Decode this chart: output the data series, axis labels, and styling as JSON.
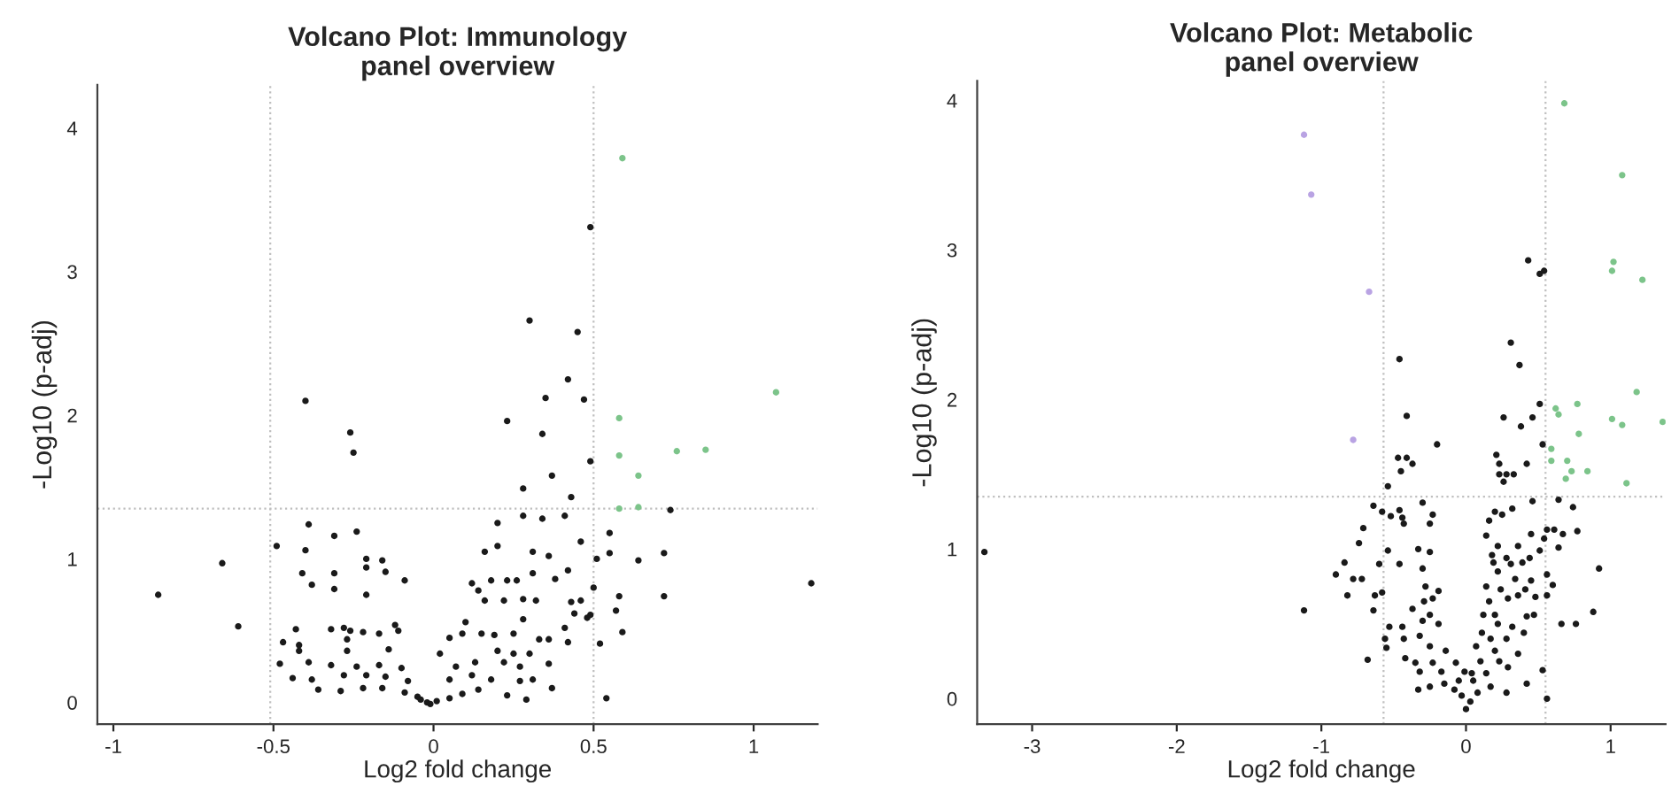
{
  "chart_data": [
    {
      "type": "scatter",
      "title": "Volcano Plot: Immunology\npanel overview",
      "xlabel": "Log2 fold change",
      "ylabel": "-Log10 (p-adj)",
      "xlim": [
        -1.05,
        1.2
      ],
      "ylim": [
        -0.15,
        4.3
      ],
      "xticks": [
        -1,
        -0.5,
        0,
        0.5,
        1
      ],
      "yticks": [
        0,
        1,
        2,
        3,
        4
      ],
      "marker": "circle",
      "grid": false,
      "legend": false,
      "ref_lines": [
        {
          "axis": "x",
          "value": -0.51,
          "color": "#bfbfbf",
          "line_style": "dotted"
        },
        {
          "axis": "x",
          "value": 0.5,
          "color": "#bfbfbf",
          "line_style": "dotted"
        },
        {
          "axis": "y",
          "value": 1.35,
          "color": "#bfbfbf",
          "line_style": "dotted"
        }
      ],
      "series": [
        {
          "color": "#1a1a1a",
          "x": [
            0.49,
            0.3,
            0.45,
            0.42,
            0.35,
            0.47,
            -0.4,
            0.23,
            -0.26,
            0.34,
            -0.25,
            0.49,
            0.37,
            0.28,
            0.43,
            0.74,
            -0.39,
            0.2,
            0.28,
            0.34,
            0.41,
            -0.31,
            -0.24,
            0.55,
            -0.49,
            -0.4,
            0.2,
            0.46,
            0.55,
            0.72,
            -0.66,
            -0.21,
            -0.16,
            0.16,
            0.31,
            0.36,
            0.51,
            0.64,
            -0.41,
            -0.31,
            -0.21,
            -0.15,
            0.42,
            0.31,
            1.18,
            -0.86,
            -0.38,
            -0.31,
            -0.09,
            0.12,
            0.18,
            0.23,
            0.26,
            0.38,
            0.5,
            -0.21,
            0.14,
            0.28,
            0.32,
            0.58,
            0.72,
            0.16,
            0.22,
            0.43,
            0.46,
            0.44,
            0.48,
            0.49,
            0.57,
            0.28,
            0.1,
            -0.61,
            -0.43,
            -0.32,
            -0.28,
            -0.26,
            -0.12,
            -0.11,
            0.59,
            0.41,
            -0.47,
            -0.42,
            -0.27,
            -0.22,
            -0.17,
            0.05,
            0.09,
            0.15,
            0.19,
            0.25,
            0.33,
            0.36,
            0.52,
            0.42,
            -0.42,
            -0.27,
            -0.14,
            0.02,
            0.2,
            0.25,
            0.3,
            -0.48,
            -0.39,
            -0.32,
            -0.24,
            -0.17,
            -0.1,
            0.07,
            0.13,
            0.22,
            0.27,
            0.36,
            -0.44,
            -0.38,
            -0.28,
            -0.21,
            -0.15,
            -0.08,
            0.05,
            0.12,
            0.18,
            0.27,
            0.31,
            -0.36,
            -0.29,
            -0.22,
            -0.16,
            -0.09,
            -0.05,
            -0.02,
            0.01,
            0.05,
            0.09,
            0.14,
            0.23,
            0.29,
            0.37,
            0.54,
            -0.04,
            -0.01
          ],
          "values": [
            3.31,
            2.66,
            2.58,
            2.25,
            2.12,
            2.11,
            2.1,
            1.96,
            1.88,
            1.87,
            1.74,
            1.68,
            1.58,
            1.49,
            1.43,
            1.34,
            1.24,
            1.25,
            1.3,
            1.28,
            1.3,
            1.16,
            1.19,
            1.18,
            1.09,
            1.06,
            1.09,
            1.12,
            1.04,
            1.04,
            0.97,
            1.0,
            0.99,
            1.05,
            1.05,
            1.02,
            1.0,
            0.99,
            0.9,
            0.9,
            0.94,
            0.91,
            0.92,
            0.9,
            0.83,
            0.75,
            0.82,
            0.79,
            0.85,
            0.83,
            0.85,
            0.85,
            0.85,
            0.86,
            0.8,
            0.75,
            0.78,
            0.72,
            0.71,
            0.74,
            0.74,
            0.71,
            0.71,
            0.7,
            0.71,
            0.62,
            0.59,
            0.61,
            0.64,
            0.58,
            0.56,
            0.53,
            0.51,
            0.51,
            0.52,
            0.5,
            0.54,
            0.5,
            0.49,
            0.52,
            0.42,
            0.4,
            0.44,
            0.49,
            0.48,
            0.45,
            0.48,
            0.48,
            0.47,
            0.48,
            0.44,
            0.44,
            0.41,
            0.42,
            0.36,
            0.36,
            0.37,
            0.34,
            0.36,
            0.34,
            0.34,
            0.27,
            0.28,
            0.26,
            0.25,
            0.26,
            0.24,
            0.25,
            0.28,
            0.28,
            0.25,
            0.27,
            0.17,
            0.16,
            0.19,
            0.19,
            0.18,
            0.15,
            0.16,
            0.19,
            0.16,
            0.15,
            0.16,
            0.09,
            0.08,
            0.1,
            0.1,
            0.07,
            0.04,
            0.0,
            0.01,
            0.03,
            0.06,
            0.09,
            0.05,
            0.02,
            0.1,
            0.03,
            0.02,
            -0.01
          ]
        },
        {
          "color": "#7cc48a",
          "x": [
            0.59,
            1.07,
            0.58,
            0.58,
            0.76,
            0.85,
            0.64,
            0.58,
            0.64
          ],
          "values": [
            3.79,
            2.16,
            1.98,
            1.72,
            1.75,
            1.76,
            1.58,
            1.35,
            1.36
          ]
        }
      ]
    },
    {
      "type": "scatter",
      "title": "Volcano Plot: Metabolic\npanel overview",
      "xlabel": "Log2 fold change",
      "ylabel": "-Log10 (p-adj)",
      "xlim": [
        -3.38,
        1.38
      ],
      "ylim": [
        -0.17,
        4.13
      ],
      "xticks": [
        -3,
        -2,
        -1,
        0,
        1
      ],
      "yticks": [
        0,
        1,
        2,
        3,
        4
      ],
      "marker": "circle",
      "grid": false,
      "legend": false,
      "ref_lines": [
        {
          "axis": "x",
          "value": -0.57,
          "color": "#bfbfbf",
          "line_style": "dotted"
        },
        {
          "axis": "x",
          "value": 0.55,
          "color": "#bfbfbf",
          "line_style": "dotted"
        },
        {
          "axis": "y",
          "value": 1.35,
          "color": "#bfbfbf",
          "line_style": "dotted"
        }
      ],
      "series": [
        {
          "color": "#1a1a1a",
          "x": [
            0.43,
            0.51,
            0.54,
            0.31,
            -0.46,
            0.37,
            0.51,
            -0.41,
            0.26,
            0.46,
            0.38,
            -0.2,
            0.53,
            0.21,
            -0.47,
            -0.41,
            -0.37,
            -0.45,
            0.23,
            0.42,
            0.23,
            0.28,
            0.33,
            0.26,
            -0.54,
            0.46,
            0.64,
            -0.64,
            -0.3,
            0.74,
            -0.58,
            -0.46,
            -0.23,
            0.2,
            0.32,
            -0.52,
            -0.44,
            0.25,
            -0.43,
            -0.25,
            0.16,
            -0.71,
            0.56,
            0.61,
            0.67,
            0.77,
            0.14,
            0.45,
            0.54,
            -0.74,
            0.22,
            0.36,
            0.64,
            0.51,
            -0.54,
            -0.33,
            -0.25,
            0.18,
            0.28,
            0.44,
            -3.33,
            -0.84,
            -0.6,
            -0.46,
            0.92,
            0.19,
            0.31,
            0.39,
            -0.3,
            -0.9,
            -0.78,
            -0.72,
            0.22,
            0.56,
            0.34,
            0.45,
            0.6,
            -0.28,
            -0.19,
            0.14,
            0.24,
            0.41,
            -0.82,
            -0.63,
            -0.58,
            -0.23,
            0.56,
            -0.29,
            0.16,
            0.29,
            0.36,
            0.48,
            -0.64,
            -1.12,
            0.88,
            0.12,
            0.2,
            0.42,
            0.47,
            -0.37,
            -0.25,
            0.66,
            0.76,
            -0.53,
            -0.44,
            -0.3,
            -0.19,
            0.22,
            0.32,
            0.11,
            0.4,
            -0.56,
            -0.43,
            -0.32,
            0.17,
            0.28,
            -0.55,
            -0.25,
            -0.14,
            0.07,
            0.2,
            0.36,
            -0.68,
            -0.42,
            -0.35,
            -0.23,
            -0.07,
            0.1,
            0.23,
            0.29,
            -0.32,
            -0.17,
            -0.01,
            0.53,
            0.04,
            0.14,
            0.42,
            -0.33,
            -0.25,
            -0.15,
            -0.08,
            -0.03,
            0.0,
            0.03,
            0.08,
            0.17,
            0.28,
            0.56,
            -0.05,
            0.05
          ],
          "values": [
            2.93,
            2.84,
            2.86,
            2.38,
            2.27,
            2.23,
            1.97,
            1.89,
            1.88,
            1.88,
            1.82,
            1.7,
            1.7,
            1.63,
            1.61,
            1.61,
            1.57,
            1.52,
            1.57,
            1.57,
            1.5,
            1.5,
            1.5,
            1.45,
            1.42,
            1.32,
            1.33,
            1.29,
            1.31,
            1.28,
            1.25,
            1.26,
            1.23,
            1.25,
            1.27,
            1.22,
            1.21,
            1.23,
            1.17,
            1.17,
            1.19,
            1.14,
            1.13,
            1.13,
            1.1,
            1.12,
            1.09,
            1.1,
            1.07,
            1.04,
            1.02,
            1.02,
            1.01,
            0.99,
            0.99,
            1.0,
            0.98,
            0.96,
            0.94,
            0.94,
            0.98,
            0.91,
            0.9,
            0.9,
            0.87,
            0.91,
            0.9,
            0.91,
            0.87,
            0.83,
            0.8,
            0.8,
            0.85,
            0.83,
            0.8,
            0.79,
            0.76,
            0.75,
            0.72,
            0.75,
            0.73,
            0.73,
            0.69,
            0.69,
            0.71,
            0.67,
            0.69,
            0.65,
            0.65,
            0.67,
            0.69,
            0.68,
            0.59,
            0.59,
            0.58,
            0.56,
            0.56,
            0.55,
            0.56,
            0.6,
            0.56,
            0.5,
            0.5,
            0.48,
            0.48,
            0.52,
            0.5,
            0.5,
            0.48,
            0.44,
            0.44,
            0.4,
            0.4,
            0.42,
            0.4,
            0.4,
            0.34,
            0.35,
            0.32,
            0.35,
            0.32,
            0.3,
            0.26,
            0.27,
            0.24,
            0.24,
            0.24,
            0.25,
            0.25,
            0.21,
            0.18,
            0.18,
            0.18,
            0.19,
            0.17,
            0.17,
            0.1,
            0.06,
            0.08,
            0.1,
            0.06,
            0.02,
            -0.07,
            -0.02,
            0.04,
            0.08,
            0.04,
            0.0,
            0.12,
            0.12
          ]
        },
        {
          "color": "#7cc48a",
          "x": [
            0.68,
            1.08,
            1.02,
            1.01,
            1.22,
            1.18,
            0.77,
            0.62,
            0.64,
            1.01,
            1.08,
            1.36,
            0.78,
            0.59,
            0.59,
            0.7,
            0.73,
            0.84,
            0.69,
            1.11
          ],
          "values": [
            3.98,
            3.5,
            2.92,
            2.86,
            2.8,
            2.05,
            1.97,
            1.94,
            1.9,
            1.87,
            1.83,
            1.85,
            1.77,
            1.67,
            1.59,
            1.59,
            1.52,
            1.52,
            1.47,
            1.44
          ]
        },
        {
          "color": "#b9a3e3",
          "x": [
            -1.12,
            -1.07,
            -0.67,
            -0.78
          ],
          "values": [
            3.77,
            3.37,
            2.72,
            1.73
          ]
        }
      ]
    }
  ]
}
